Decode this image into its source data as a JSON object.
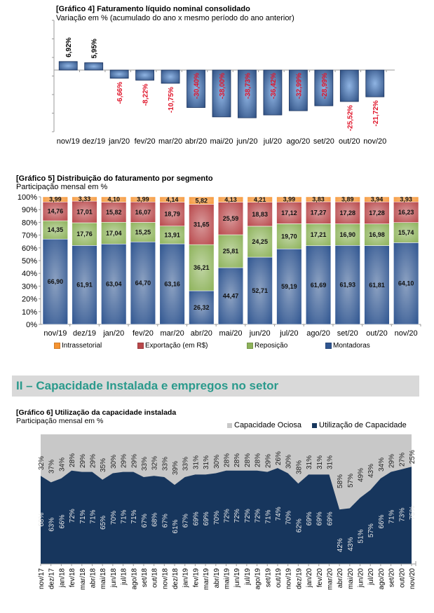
{
  "chart_data": [
    {
      "id": "grafico4",
      "type": "bar",
      "title": "[Gráfico 4] Faturamento líquido nominal consolidado",
      "subtitle": "Variação em % (acumulado do ano x mesmo período do ano anterior)",
      "categories": [
        "nov/19",
        "dez/19",
        "jan/20",
        "fev/20",
        "mar/20",
        "abr/20",
        "mai/20",
        "jun/20",
        "jul/20",
        "ago/20",
        "set/20",
        "out/20",
        "nov/20"
      ],
      "values": [
        6.92,
        5.95,
        -6.66,
        -8.22,
        -10.75,
        -30.4,
        -38.0,
        -38.73,
        -36.42,
        -32.99,
        -28.99,
        -25.52,
        -21.72
      ],
      "labels": [
        "6,92%",
        "5,95%",
        "-6,66%",
        "-8,22%",
        "-10,75%",
        "-30,40%",
        "-38,00%",
        "-38,73%",
        "-36,42%",
        "-32,99%",
        "-28,99%",
        "-25,52%",
        "-21,72%"
      ],
      "ylim": [
        -50,
        50
      ],
      "xlabel": "",
      "ylabel": "",
      "colors": {
        "bar": "#2e4f82",
        "positive_label": "#000000",
        "negative_label": "#e0162b"
      }
    },
    {
      "id": "grafico5",
      "type": "bar",
      "stacked": true,
      "title": "[Gráfico 5] Distribuição do faturamento por segmento",
      "subtitle": "Participação mensal em %",
      "categories": [
        "nov/19",
        "dez/19",
        "jan/20",
        "fev/20",
        "mar/20",
        "abr/20",
        "mai/20",
        "jun/20",
        "jul/20",
        "ago/20",
        "set/20",
        "out/20",
        "nov/20"
      ],
      "yticks": [
        "0%",
        "10%",
        "20%",
        "30%",
        "40%",
        "50%",
        "60%",
        "70%",
        "80%",
        "90%",
        "100%"
      ],
      "ylim": [
        0,
        100
      ],
      "legend_position": "bottom",
      "series": [
        {
          "name": "Montadoras",
          "color": "#2f5590",
          "values": [
            66.9,
            61.91,
            63.04,
            64.7,
            63.16,
            26.32,
            44.47,
            52.71,
            59.19,
            61.69,
            61.93,
            61.81,
            64.1
          ],
          "labels": [
            "66,90",
            "61,91",
            "63,04",
            "64,70",
            "63,16",
            "26,32",
            "44,47",
            "52,71",
            "59,19",
            "61,69",
            "61,93",
            "61,81",
            "64,10"
          ]
        },
        {
          "name": "Reposição",
          "color": "#8db25a",
          "values": [
            14.35,
            17.76,
            17.04,
            15.25,
            13.91,
            36.21,
            25.81,
            24.25,
            19.7,
            17.21,
            16.9,
            16.98,
            15.74
          ],
          "labels": [
            "14,35",
            "17,76",
            "17,04",
            "15,25",
            "13,91",
            "36,21",
            "25,81",
            "24,25",
            "19,70",
            "17,21",
            "16,90",
            "16,98",
            "15,74"
          ]
        },
        {
          "name": "Exportação (em R$)",
          "color": "#b8474a",
          "values": [
            14.76,
            17.01,
            15.82,
            16.07,
            18.79,
            31.65,
            25.59,
            18.83,
            17.12,
            17.27,
            17.28,
            17.28,
            16.23
          ],
          "labels": [
            "14,76",
            "17,01",
            "15,82",
            "16,07",
            "18,79",
            "31,65",
            "25,59",
            "18,83",
            "17,12",
            "17,27",
            "17,28",
            "17,28",
            "16,23"
          ]
        },
        {
          "name": "Intrassetorial",
          "color": "#f59331",
          "values": [
            3.99,
            3.33,
            4.1,
            3.99,
            4.14,
            5.82,
            4.13,
            4.21,
            3.99,
            3.83,
            3.89,
            3.94,
            3.93
          ],
          "labels": [
            "3,99",
            "3,33",
            "4,10",
            "3,99",
            "4,14",
            "5,82",
            "4,13",
            "4,21",
            "3,99",
            "3,83",
            "3,89",
            "3,94",
            "3,93"
          ]
        }
      ],
      "legend_order": [
        "Intrassetorial",
        "Exportação (em R$)",
        "Reposição",
        "Montadoras"
      ]
    },
    {
      "id": "grafico6",
      "type": "area",
      "stacked": true,
      "title": "[Gráfico 6] Utilização da capacidade instalada",
      "subtitle": "Participação mensal em %",
      "legend_position": "top-right",
      "ylim": [
        0,
        100
      ],
      "x": [
        "nov/17",
        "dez/17",
        "jan/18",
        "fev/18",
        "mar/18",
        "abr/18",
        "mai/18",
        "jun/18",
        "jul/18",
        "ago/18",
        "set/18",
        "out/18",
        "nov/18",
        "dez/18",
        "jan/19",
        "fev/19",
        "mar/19",
        "abr/19",
        "mai/19",
        "jun/19",
        "jul/19",
        "ago/19",
        "set/19",
        "out/19",
        "nov/19",
        "dez/19",
        "jan/20",
        "fev/20",
        "mar/20",
        "abr/20",
        "mai/20",
        "jun/20",
        "jul/20",
        "ago/20",
        "set/20",
        "out/20",
        "nov/20"
      ],
      "series": [
        {
          "name": "Utilização de Capacidade",
          "color": "#17365d",
          "values": [
            68,
            63,
            66,
            72,
            71,
            71,
            65,
            70,
            71,
            71,
            67,
            68,
            67,
            61,
            67,
            69,
            69,
            70,
            72,
            72,
            72,
            72,
            71,
            74,
            70,
            62,
            69,
            69,
            69,
            42,
            43,
            51,
            57,
            66,
            71,
            73,
            75
          ]
        },
        {
          "name": "Capacidade Ociosa",
          "color": "#c8c8c8",
          "values": [
            32,
            37,
            34,
            28,
            29,
            29,
            35,
            30,
            29,
            29,
            33,
            32,
            33,
            39,
            33,
            31,
            31,
            30,
            28,
            28,
            28,
            28,
            29,
            26,
            30,
            38,
            31,
            31,
            31,
            58,
            57,
            49,
            43,
            34,
            29,
            27,
            25
          ]
        }
      ]
    }
  ],
  "section": {
    "title": "II – Capacidade Instalada e empregos no setor",
    "color": "#2a9a8c"
  }
}
